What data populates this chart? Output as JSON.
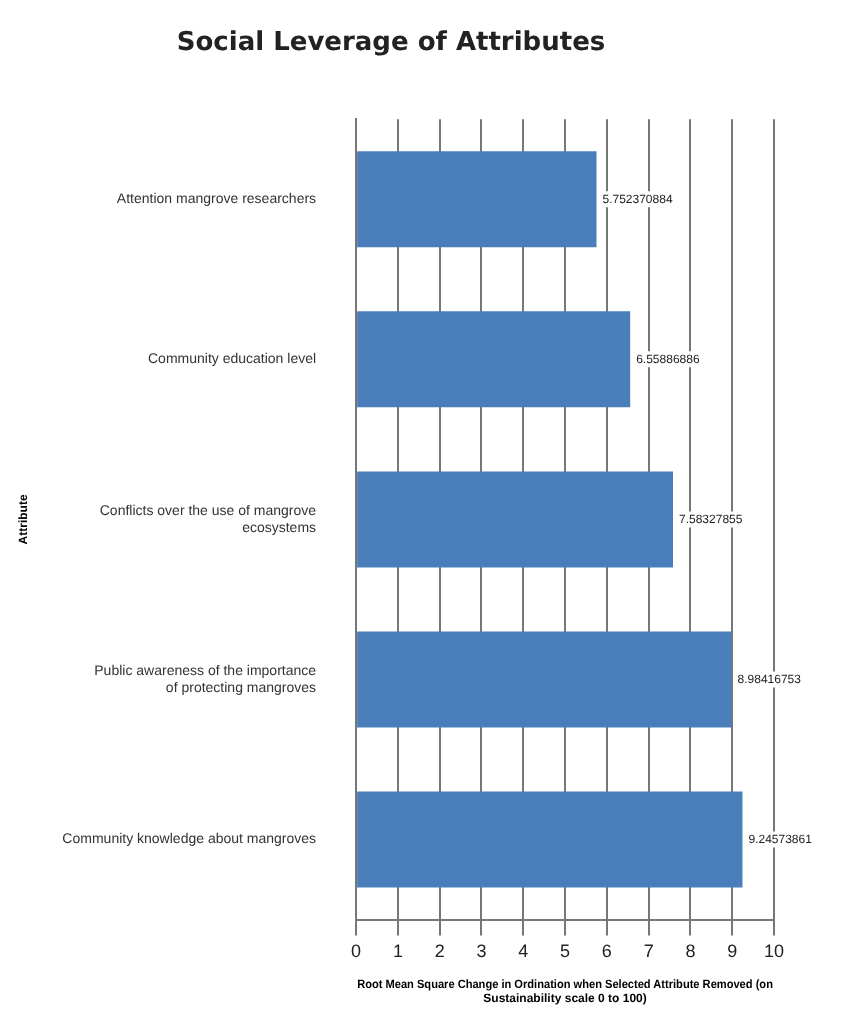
{
  "chart_data": {
    "type": "bar",
    "orientation": "horizontal",
    "title": "Social Leverage of Attributes",
    "xlabel": "Root Mean Square Change in Ordination when Selected Attribute Removed (on Sustainability scale 0 to 100)",
    "ylabel": "Attribute",
    "categories": [
      "Attention mangrove researchers",
      "Community education level",
      "Conflicts over the use of mangrove ecosystems",
      "Public awareness of the importance of protecting mangroves",
      "Community knowledge about mangroves"
    ],
    "values": [
      5.752370884,
      6.55886886,
      7.58327855,
      8.98416753,
      9.24573861
    ],
    "color": "#4a7ebb",
    "xlim": [
      0,
      10
    ],
    "xticks": [
      0,
      1,
      2,
      3,
      4,
      5,
      6,
      7,
      8,
      9,
      10
    ],
    "grid": "x",
    "data_labels": true
  }
}
